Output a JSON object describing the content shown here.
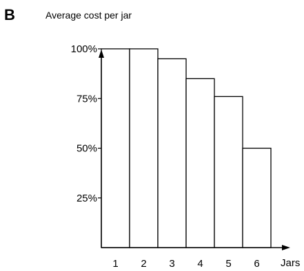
{
  "panel_label": "B",
  "chart_data": {
    "type": "bar",
    "title": "",
    "ylabel": "Average cost per jar",
    "xlabel": "Jars",
    "categories": [
      "1",
      "2",
      "3",
      "4",
      "5",
      "6"
    ],
    "values": [
      100,
      100,
      95,
      85,
      76,
      50
    ],
    "ylim": [
      0,
      110
    ],
    "yticks": [
      {
        "value": 100,
        "label": "100%"
      },
      {
        "value": 75,
        "label": "75%"
      },
      {
        "value": 50,
        "label": "50%"
      },
      {
        "value": 25,
        "label": "25%"
      }
    ],
    "grid": false,
    "colors": {
      "bar_fill": "#ffffff",
      "bar_stroke": "#000000",
      "axis": "#000000"
    }
  }
}
